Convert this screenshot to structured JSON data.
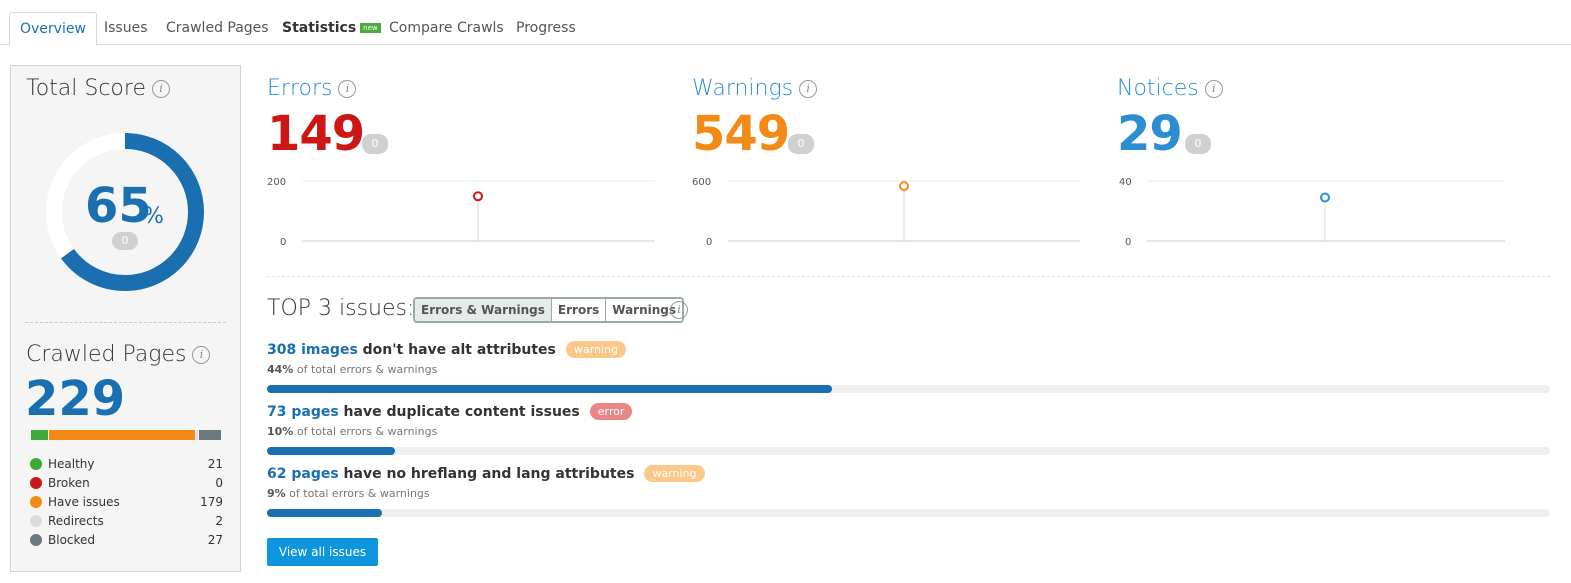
{
  "tabs": [
    {
      "label": "Overview"
    },
    {
      "label": "Issues"
    },
    {
      "label": "Crawled Pages"
    },
    {
      "label": "Statistics",
      "badge": "new"
    },
    {
      "label": "Compare Crawls"
    },
    {
      "label": "Progress"
    }
  ],
  "total_score": {
    "title": "Total Score",
    "value": "65",
    "unit": "%",
    "fraction": 0.65,
    "delta": "0",
    "color": "#1a6fb0"
  },
  "crawled_pages": {
    "title": "Crawled Pages",
    "value": "229",
    "legend": [
      {
        "label": "Healthy",
        "count": "21",
        "value": 21,
        "color": "#3aa935"
      },
      {
        "label": "Broken",
        "count": "0",
        "value": 0,
        "color": "#cc1717"
      },
      {
        "label": "Have issues",
        "count": "179",
        "value": 179,
        "color": "#f28a15"
      },
      {
        "label": "Redirects",
        "count": "2",
        "value": 2,
        "color": "#d8dcdc"
      },
      {
        "label": "Blocked",
        "count": "27",
        "value": 27,
        "color": "#6a7880"
      }
    ]
  },
  "metrics": {
    "errors": {
      "title": "Errors",
      "value": "149",
      "delta": "0",
      "y_max": "200",
      "y_min": "0",
      "max": 200,
      "point": 149,
      "color": "#cc1717",
      "title_color": "#2b8dd2"
    },
    "warnings": {
      "title": "Warnings",
      "value": "549",
      "delta": "0",
      "y_max": "600",
      "y_min": "0",
      "max": 600,
      "point": 549,
      "color": "#f28a15",
      "title_color": "#2b8dd2"
    },
    "notices": {
      "title": "Notices",
      "value": "29",
      "delta": "0",
      "y_max": "40",
      "y_min": "0",
      "max": 40,
      "point": 29,
      "color": "#2b8dd2",
      "title_color": "#2b8dd2"
    }
  },
  "top_issues": {
    "title": "TOP 3 issues:",
    "filters": [
      "Errors & Warnings",
      "Errors",
      "Warnings"
    ],
    "items": [
      {
        "link": "308 images",
        "text": " don't have alt attributes",
        "tag": "warning",
        "tag_type": "warning",
        "pct": "44%",
        "sub": " of total errors & warnings",
        "fraction": 0.44
      },
      {
        "link": "73 pages",
        "text": " have duplicate content issues",
        "tag": "error",
        "tag_type": "error",
        "pct": "10%",
        "sub": " of total errors & warnings",
        "fraction": 0.1
      },
      {
        "link": "62 pages",
        "text": " have no hreflang and lang attributes",
        "tag": "warning",
        "tag_type": "warning",
        "pct": "9%",
        "sub": " of total errors & warnings",
        "fraction": 0.09
      }
    ],
    "view_all_label": "View all issues"
  }
}
